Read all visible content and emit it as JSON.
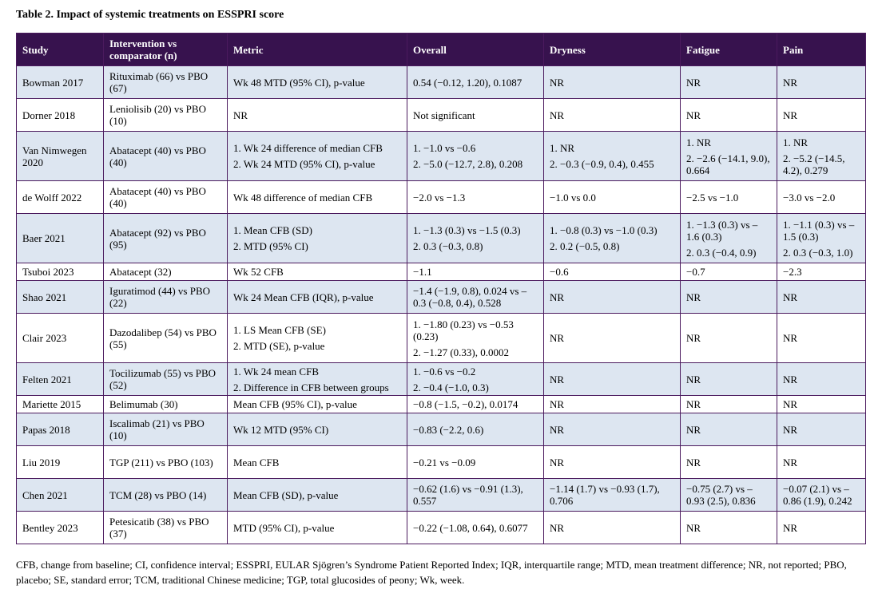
{
  "title": "Table 2. Impact of systemic treatments on ESSPRI score",
  "columns": [
    "Study",
    "Intervention vs comparator (n)",
    "Metric",
    "Overall",
    "Dryness",
    "Fatigue",
    "Pain"
  ],
  "rows": [
    [
      "Bowman 2017",
      [
        "Rituximab (66) vs PBO (67)"
      ],
      [
        "Wk 48 MTD (95% CI), p-value"
      ],
      [
        "0.54 (−0.12, 1.20), 0.1087"
      ],
      [
        "NR"
      ],
      [
        "NR"
      ],
      [
        "NR"
      ]
    ],
    [
      "Dorner 2018",
      [
        "Leniolisib (20) vs PBO (10)"
      ],
      [
        "NR"
      ],
      [
        "Not significant"
      ],
      [
        "NR"
      ],
      [
        "NR"
      ],
      [
        "NR"
      ]
    ],
    [
      "Van Nimwegen 2020",
      [
        "Abatacept (40) vs PBO (40)"
      ],
      [
        "1. Wk 24 difference of median CFB",
        "2. Wk 24 MTD (95% CI), p-value"
      ],
      [
        "1. −1.0 vs −0.6",
        "2. −5.0 (−12.7, 2.8), 0.208"
      ],
      [
        "1. NR",
        "2. −0.3 (−0.9, 0.4), 0.455"
      ],
      [
        "1. NR",
        "2. −2.6 (−14.1, 9.0), 0.664"
      ],
      [
        "1. NR",
        "2. −5.2 (−14.5, 4.2), 0.279"
      ]
    ],
    [
      "de Wolff 2022",
      [
        "Abatacept (40) vs PBO (40)"
      ],
      [
        "Wk 48 difference of median CFB"
      ],
      [
        "−2.0 vs −1.3"
      ],
      [
        "−1.0 vs 0.0"
      ],
      [
        "−2.5 vs −1.0"
      ],
      [
        "−3.0 vs −2.0"
      ]
    ],
    [
      "Baer 2021",
      [
        "Abatacept (92) vs PBO (95)"
      ],
      [
        "1. Mean CFB (SD)",
        "2. MTD (95% CI)"
      ],
      [
        "1. −1.3 (0.3) vs −1.5 (0.3)",
        "2. 0.3 (−0.3, 0.8)"
      ],
      [
        "1. −0.8 (0.3) vs −1.0 (0.3)",
        "2. 0.2 (−0.5, 0.8)"
      ],
      [
        "1. −1.3 (0.3) vs – 1.6 (0.3)",
        "2. 0.3 (−0.4, 0.9)"
      ],
      [
        "1. −1.1 (0.3) vs – 1.5 (0.3)",
        "2. 0.3 (−0.3, 1.0)"
      ]
    ],
    [
      "Tsuboi 2023",
      [
        "Abatacept (32)"
      ],
      [
        "Wk 52 CFB"
      ],
      [
        "−1.1"
      ],
      [
        "−0.6"
      ],
      [
        "−0.7"
      ],
      [
        "−2.3"
      ]
    ],
    [
      "Shao 2021",
      [
        "Iguratimod (44) vs PBO (22)"
      ],
      [
        "Wk 24 Mean CFB (IQR), p-value"
      ],
      [
        "−1.4 (−1.9, 0.8), 0.024 vs – 0.3 (−0.8, 0.4), 0.528"
      ],
      [
        "NR"
      ],
      [
        "NR"
      ],
      [
        "NR"
      ]
    ],
    [
      "Clair 2023",
      [
        "Dazodalibep (54) vs PBO (55)"
      ],
      [
        "1. LS Mean CFB (SE)",
        "2. MTD (SE), p-value"
      ],
      [
        "1. −1.80 (0.23) vs −0.53 (0.23)",
        "2. −1.27 (0.33), 0.0002"
      ],
      [
        "NR"
      ],
      [
        "NR"
      ],
      [
        "NR"
      ]
    ],
    [
      "Felten 2021",
      [
        "Tocilizumab (55) vs PBO (52)"
      ],
      [
        "1. Wk 24 mean CFB",
        "2. Difference in CFB between groups"
      ],
      [
        "1. −0.6 vs −0.2",
        "2. −0.4 (−1.0, 0.3)"
      ],
      [
        "NR"
      ],
      [
        "NR"
      ],
      [
        "NR"
      ]
    ],
    [
      "Mariette 2015",
      [
        "Belimumab (30)"
      ],
      [
        "Mean CFB (95% CI), p-value"
      ],
      [
        "−0.8 (−1.5, −0.2), 0.0174"
      ],
      [
        "NR"
      ],
      [
        "NR"
      ],
      [
        "NR"
      ]
    ],
    [
      "Papas 2018",
      [
        "Iscalimab (21) vs PBO (10)"
      ],
      [
        "Wk 12 MTD (95% CI)"
      ],
      [
        "−0.83 (−2.2, 0.6)"
      ],
      [
        "NR"
      ],
      [
        "NR"
      ],
      [
        "NR"
      ]
    ],
    [
      "Liu 2019",
      [
        "TGP (211) vs PBO (103)"
      ],
      [
        "Mean CFB"
      ],
      [
        "−0.21 vs −0.09"
      ],
      [
        "NR"
      ],
      [
        "NR"
      ],
      [
        "NR"
      ]
    ],
    [
      "Chen 2021",
      [
        "TCM (28) vs PBO (14)"
      ],
      [
        "Mean CFB (SD), p-value"
      ],
      [
        "−0.62 (1.6) vs −0.91 (1.3), 0.557"
      ],
      [
        "−1.14 (1.7) vs −0.93 (1.7), 0.706"
      ],
      [
        "−0.75 (2.7) vs – 0.93 (2.5), 0.836"
      ],
      [
        "−0.07 (2.1) vs – 0.86 (1.9), 0.242"
      ]
    ],
    [
      "Bentley 2023",
      [
        "Petesicatib (38) vs PBO (37)"
      ],
      [
        "MTD (95% CI), p-value"
      ],
      [
        "−0.22 (−1.08, 0.64), 0.6077"
      ],
      [
        "NR"
      ],
      [
        "NR"
      ],
      [
        "NR"
      ]
    ]
  ],
  "footnote": "CFB, change from baseline; CI, confidence interval; ESSPRI, EULAR Sjögren’s Syndrome Patient Reported Index; IQR, interquartile range; MTD, mean treatment difference; NR, not reported; PBO, placebo; SE, standard error; TCM, traditional Chinese medicine; TGP, total glucosides of peony; Wk, week."
}
